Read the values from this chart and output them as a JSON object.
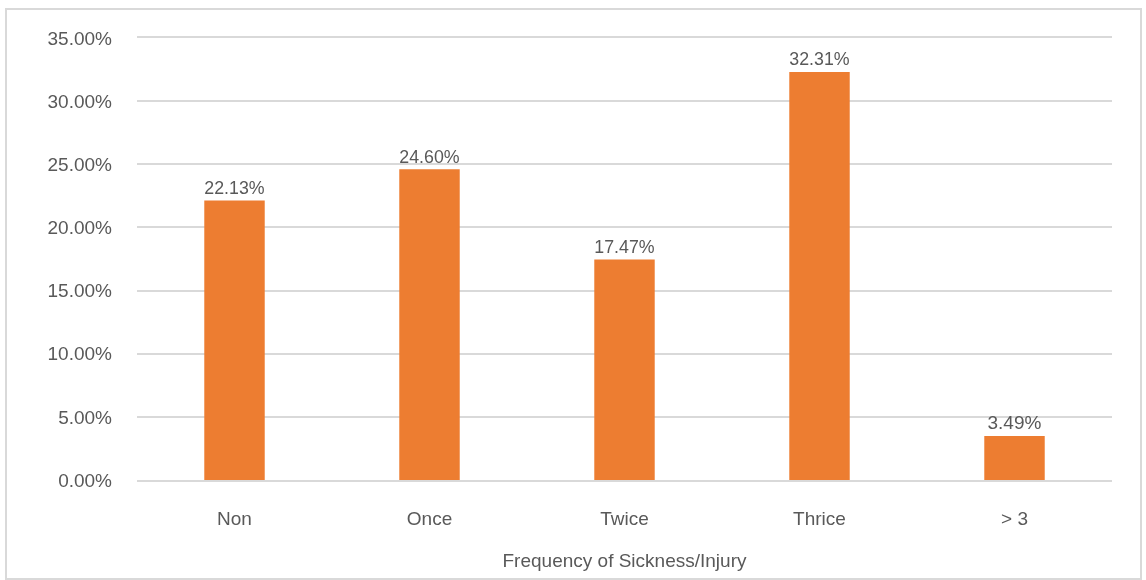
{
  "chart_data": {
    "type": "bar",
    "xlabel": "Frequency of Sickness/Injury",
    "categories": [
      "Non",
      "Once",
      "Twice",
      "Thrice",
      "> 3"
    ],
    "values": [
      22.13,
      24.6,
      17.47,
      32.31,
      3.49
    ],
    "color": "#ed7d31",
    "value_labels": [
      "22.13%",
      "24.60%",
      "17.47%",
      "32.31%",
      "3.49%"
    ],
    "ylim": [
      0,
      35
    ],
    "yticks": [
      {
        "value": 0,
        "label": "0.00%"
      },
      {
        "value": 5,
        "label": "5.00%"
      },
      {
        "value": 10,
        "label": "10.00%"
      },
      {
        "value": 15,
        "label": "15.00%"
      },
      {
        "value": 20,
        "label": "20.00%"
      },
      {
        "value": 25,
        "label": "25.00%"
      },
      {
        "value": 30,
        "label": "30.00%"
      },
      {
        "value": 35,
        "label": "35.00%"
      }
    ],
    "grid": "y"
  }
}
